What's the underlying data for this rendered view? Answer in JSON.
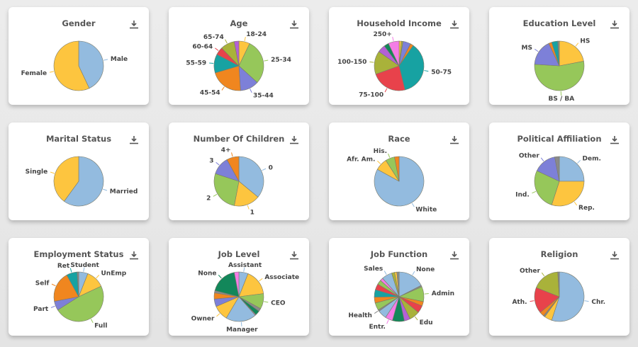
{
  "palette": {
    "blue": "#93bbdf",
    "yellow": "#fdc53f",
    "green": "#96c75a",
    "purple": "#7d80d8",
    "orange": "#f0861f",
    "teal": "#17a2a2",
    "red": "#e8424b",
    "olive": "#a9b23a",
    "violet": "#b360d6",
    "pink": "#f47de6",
    "dkgreen": "#12875a",
    "gray": "#8a8a8a"
  },
  "download_icon": "download-icon",
  "chart_data": [
    {
      "type": "pie",
      "title": "Gender",
      "slices": [
        {
          "label": "Male",
          "value": 43,
          "color": "blue"
        },
        {
          "label": "Female",
          "value": 57,
          "color": "yellow"
        }
      ]
    },
    {
      "type": "pie",
      "title": "Age",
      "slices": [
        {
          "label": "18-24",
          "value": 7,
          "color": "yellow"
        },
        {
          "label": "25-34",
          "value": 29,
          "color": "green"
        },
        {
          "label": "35-44",
          "value": 12,
          "color": "purple"
        },
        {
          "label": "45-54",
          "value": 21,
          "color": "orange"
        },
        {
          "label": "55-59",
          "value": 12,
          "color": "teal"
        },
        {
          "label": "60-64",
          "value": 5,
          "color": "red"
        },
        {
          "label": "65-74",
          "value": 9,
          "color": "olive"
        },
        {
          "label": "",
          "value": 3,
          "color": "violet"
        }
      ]
    },
    {
      "type": "pie",
      "title": "Household Income",
      "slices": [
        {
          "label": "",
          "value": 1.5,
          "color": "yellow"
        },
        {
          "label": "",
          "value": 1,
          "color": "olive"
        },
        {
          "label": "",
          "value": 5,
          "color": "purple"
        },
        {
          "label": "",
          "value": 2,
          "color": "orange"
        },
        {
          "label": "50-75",
          "value": 36,
          "color": "teal"
        },
        {
          "label": "75-100",
          "value": 23,
          "color": "red"
        },
        {
          "label": "100-150",
          "value": 15,
          "color": "olive"
        },
        {
          "label": "",
          "value": 5,
          "color": "violet"
        },
        {
          "label": "",
          "value": 3,
          "color": "dkgreen"
        },
        {
          "label": "250+",
          "value": 7,
          "color": "pink"
        }
      ]
    },
    {
      "type": "pie",
      "title": "Education Level",
      "slices": [
        {
          "label": "HS",
          "value": 22,
          "color": "yellow"
        },
        {
          "label": "BS / BA",
          "value": 54,
          "color": "green"
        },
        {
          "label": "MS",
          "value": 17,
          "color": "purple"
        },
        {
          "label": "",
          "value": 2,
          "color": "orange"
        },
        {
          "label": "",
          "value": 4,
          "color": "teal"
        },
        {
          "label": "",
          "value": 1,
          "color": "gray"
        }
      ]
    },
    {
      "type": "pie",
      "title": "Marital Status",
      "slices": [
        {
          "label": "Married",
          "value": 60,
          "color": "blue"
        },
        {
          "label": "Single",
          "value": 40,
          "color": "yellow"
        }
      ]
    },
    {
      "type": "pie",
      "title": "Number Of Children",
      "slices": [
        {
          "label": "0",
          "value": 36,
          "color": "blue"
        },
        {
          "label": "1",
          "value": 17,
          "color": "yellow"
        },
        {
          "label": "2",
          "value": 27,
          "color": "green"
        },
        {
          "label": "3",
          "value": 12,
          "color": "purple"
        },
        {
          "label": "4+",
          "value": 8,
          "color": "orange"
        }
      ]
    },
    {
      "type": "pie",
      "title": "Race",
      "slices": [
        {
          "label": "White",
          "value": 83,
          "color": "blue"
        },
        {
          "label": "Afr. Am.",
          "value": 8,
          "color": "yellow"
        },
        {
          "label": "His.",
          "value": 6,
          "color": "green"
        },
        {
          "label": "",
          "value": 3,
          "color": "orange"
        }
      ]
    },
    {
      "type": "pie",
      "title": "Political Affiliation",
      "slices": [
        {
          "label": "Dem.",
          "value": 25,
          "color": "blue"
        },
        {
          "label": "Rep.",
          "value": 30,
          "color": "yellow"
        },
        {
          "label": "Ind.",
          "value": 27,
          "color": "green"
        },
        {
          "label": "Other",
          "value": 15,
          "color": "purple"
        },
        {
          "label": "",
          "value": 3,
          "color": "gray"
        }
      ]
    },
    {
      "type": "pie",
      "title": "Employment Status",
      "slices": [
        {
          "label": "Student",
          "value": 6,
          "color": "blue"
        },
        {
          "label": "UnEmp",
          "value": 12,
          "color": "yellow"
        },
        {
          "label": "Full",
          "value": 48,
          "color": "green"
        },
        {
          "label": "Part",
          "value": 6,
          "color": "purple"
        },
        {
          "label": "Self",
          "value": 20,
          "color": "orange"
        },
        {
          "label": "Ret",
          "value": 7,
          "color": "teal"
        },
        {
          "label": "",
          "value": 1,
          "color": "gray"
        }
      ]
    },
    {
      "type": "pie",
      "title": "Job Level",
      "slices": [
        {
          "label": "Assistant",
          "value": 6,
          "color": "blue"
        },
        {
          "label": "Associate",
          "value": 17,
          "color": "yellow"
        },
        {
          "label": "CEO",
          "value": 10,
          "color": "green"
        },
        {
          "label": "",
          "value": 2,
          "color": "gray"
        },
        {
          "label": "",
          "value": 3,
          "color": "dkgreen"
        },
        {
          "label": "",
          "value": 0.5,
          "color": "pink"
        },
        {
          "label": "Manager",
          "value": 20,
          "color": "blue"
        },
        {
          "label": "Owner",
          "value": 10,
          "color": "yellow"
        },
        {
          "label": "",
          "value": 5,
          "color": "purple"
        },
        {
          "label": "",
          "value": 4,
          "color": "orange"
        },
        {
          "label": "",
          "value": 1.5,
          "color": "gray"
        },
        {
          "label": "None",
          "value": 18,
          "color": "dkgreen"
        },
        {
          "label": "",
          "value": 3,
          "color": "pink"
        }
      ]
    },
    {
      "type": "pie",
      "title": "Job Function",
      "slices": [
        {
          "label": "None",
          "value": 18,
          "color": "blue"
        },
        {
          "label": "",
          "value": 1,
          "color": "gray"
        },
        {
          "label": "Admin",
          "value": 10,
          "color": "green"
        },
        {
          "label": "",
          "value": 3,
          "color": "orange"
        },
        {
          "label": "",
          "value": 5,
          "color": "red"
        },
        {
          "label": "Edu",
          "value": 7,
          "color": "olive"
        },
        {
          "label": "",
          "value": 4,
          "color": "violet"
        },
        {
          "label": "",
          "value": 8,
          "color": "dkgreen"
        },
        {
          "label": "Entr.",
          "value": 5,
          "color": "pink"
        },
        {
          "label": "",
          "value": 6,
          "color": "blue"
        },
        {
          "label": "Health",
          "value": 1,
          "color": "gray"
        },
        {
          "label": "",
          "value": 5,
          "color": "green"
        },
        {
          "label": "",
          "value": 4,
          "color": "orange"
        },
        {
          "label": "",
          "value": 5,
          "color": "teal"
        },
        {
          "label": "",
          "value": 4,
          "color": "red"
        },
        {
          "label": "",
          "value": 3,
          "color": "green"
        },
        {
          "label": "",
          "value": 2,
          "color": "pink"
        },
        {
          "label": "Sales",
          "value": 7,
          "color": "blue"
        },
        {
          "label": "",
          "value": 2,
          "color": "olive"
        },
        {
          "label": "",
          "value": 1.5,
          "color": "yellow"
        },
        {
          "label": "",
          "value": 1.5,
          "color": "gray"
        }
      ]
    },
    {
      "type": "pie",
      "title": "Religion",
      "slices": [
        {
          "label": "Chr.",
          "value": 55,
          "color": "blue"
        },
        {
          "label": "",
          "value": 5,
          "color": "yellow"
        },
        {
          "label": "",
          "value": 1,
          "color": "gray"
        },
        {
          "label": "",
          "value": 3,
          "color": "orange"
        },
        {
          "label": "Ath.",
          "value": 17,
          "color": "red"
        },
        {
          "label": "Other",
          "value": 18,
          "color": "olive"
        },
        {
          "label": "",
          "value": 1,
          "color": "gray"
        }
      ]
    }
  ]
}
